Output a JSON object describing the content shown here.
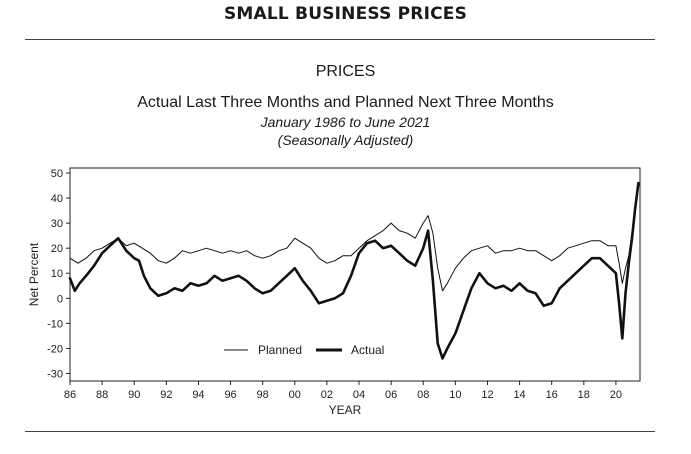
{
  "header": {
    "title": "SMALL BUSINESS PRICES"
  },
  "chart_data": {
    "type": "line",
    "title": "PRICES",
    "subtitle": "Actual Last Three Months and Planned Next Three Months",
    "date_range": "January 1986 to June 2021",
    "note": "(Seasonally Adjusted)",
    "xlabel": "YEAR",
    "ylabel": "Net Percent",
    "xlim": [
      1986,
      2021.5
    ],
    "ylim": [
      -33,
      52
    ],
    "y_ticks": [
      -30,
      -20,
      -10,
      0,
      10,
      20,
      30,
      40,
      50
    ],
    "x_ticks": [
      1986,
      1988,
      1990,
      1992,
      1994,
      1996,
      1998,
      2000,
      2002,
      2004,
      2006,
      2008,
      2010,
      2012,
      2014,
      2016,
      2018,
      2020
    ],
    "x_tick_labels": [
      "86",
      "88",
      "90",
      "92",
      "94",
      "96",
      "98",
      "00",
      "02",
      "04",
      "06",
      "08",
      "10",
      "12",
      "14",
      "16",
      "18",
      "20"
    ],
    "legend_position": "bottom-center",
    "grid": false,
    "series": [
      {
        "name": "Planned",
        "style": "thin",
        "x": [
          1986,
          1986.5,
          1987,
          1987.5,
          1988,
          1988.5,
          1989,
          1989.5,
          1990,
          1990.5,
          1991,
          1991.5,
          1992,
          1992.5,
          1993,
          1993.5,
          1994,
          1994.5,
          1995,
          1995.5,
          1996,
          1996.5,
          1997,
          1997.5,
          1998,
          1998.5,
          1999,
          1999.5,
          2000,
          2000.5,
          2001,
          2001.5,
          2002,
          2002.5,
          2003,
          2003.5,
          2004,
          2004.5,
          2005,
          2005.5,
          2006,
          2006.5,
          2007,
          2007.5,
          2008,
          2008.3,
          2008.6,
          2008.9,
          2009.2,
          2009.5,
          2010,
          2010.5,
          2011,
          2011.5,
          2012,
          2012.5,
          2013,
          2013.5,
          2014,
          2014.5,
          2015,
          2015.5,
          2016,
          2016.5,
          2017,
          2017.5,
          2018,
          2018.5,
          2019,
          2019.5,
          2020,
          2020.2,
          2020.4,
          2020.6,
          2020.8,
          2021,
          2021.2,
          2021.4
        ],
        "values": [
          16,
          14,
          16,
          19,
          20,
          22,
          24,
          21,
          22,
          20,
          18,
          15,
          14,
          16,
          19,
          18,
          19,
          20,
          19,
          18,
          19,
          18,
          19,
          17,
          16,
          17,
          19,
          20,
          24,
          22,
          20,
          16,
          14,
          15,
          17,
          17,
          20,
          23,
          25,
          27,
          30,
          27,
          26,
          24,
          30,
          33,
          26,
          12,
          3,
          6,
          12,
          16,
          19,
          20,
          21,
          18,
          19,
          19,
          20,
          19,
          19,
          17,
          15,
          17,
          20,
          21,
          22,
          23,
          23,
          21,
          21,
          14,
          6,
          12,
          17,
          26,
          34,
          45
        ]
      },
      {
        "name": "Actual",
        "style": "thick",
        "x": [
          1986,
          1986.3,
          1986.6,
          1987,
          1987.5,
          1988,
          1988.5,
          1989,
          1989.5,
          1990,
          1990.3,
          1990.6,
          1991,
          1991.5,
          1992,
          1992.5,
          1993,
          1993.5,
          1994,
          1994.5,
          1995,
          1995.5,
          1996,
          1996.5,
          1997,
          1997.5,
          1998,
          1998.5,
          1999,
          1999.5,
          2000,
          2000.5,
          2001,
          2001.5,
          2002,
          2002.5,
          2003,
          2003.5,
          2004,
          2004.5,
          2005,
          2005.5,
          2006,
          2006.5,
          2007,
          2007.5,
          2008,
          2008.3,
          2008.6,
          2008.9,
          2009.2,
          2009.5,
          2010,
          2010.5,
          2011,
          2011.5,
          2012,
          2012.5,
          2013,
          2013.5,
          2014,
          2014.5,
          2015,
          2015.5,
          2016,
          2016.5,
          2017,
          2017.5,
          2018,
          2018.5,
          2019,
          2019.5,
          2020,
          2020.2,
          2020.4,
          2020.6,
          2020.8,
          2021,
          2021.2,
          2021.4
        ],
        "values": [
          8,
          3,
          6,
          9,
          13,
          18,
          21,
          24,
          19,
          16,
          15,
          9,
          4,
          1,
          2,
          4,
          3,
          6,
          5,
          6,
          9,
          7,
          8,
          9,
          7,
          4,
          2,
          3,
          6,
          9,
          12,
          7,
          3,
          -2,
          -1,
          0,
          2,
          9,
          18,
          22,
          23,
          20,
          21,
          18,
          15,
          13,
          20,
          27,
          7,
          -18,
          -24,
          -20,
          -14,
          -5,
          4,
          10,
          6,
          4,
          5,
          3,
          6,
          3,
          2,
          -3,
          -2,
          4,
          7,
          10,
          13,
          16,
          16,
          13,
          10,
          -2,
          -16,
          2,
          14,
          24,
          36,
          46
        ]
      }
    ]
  }
}
